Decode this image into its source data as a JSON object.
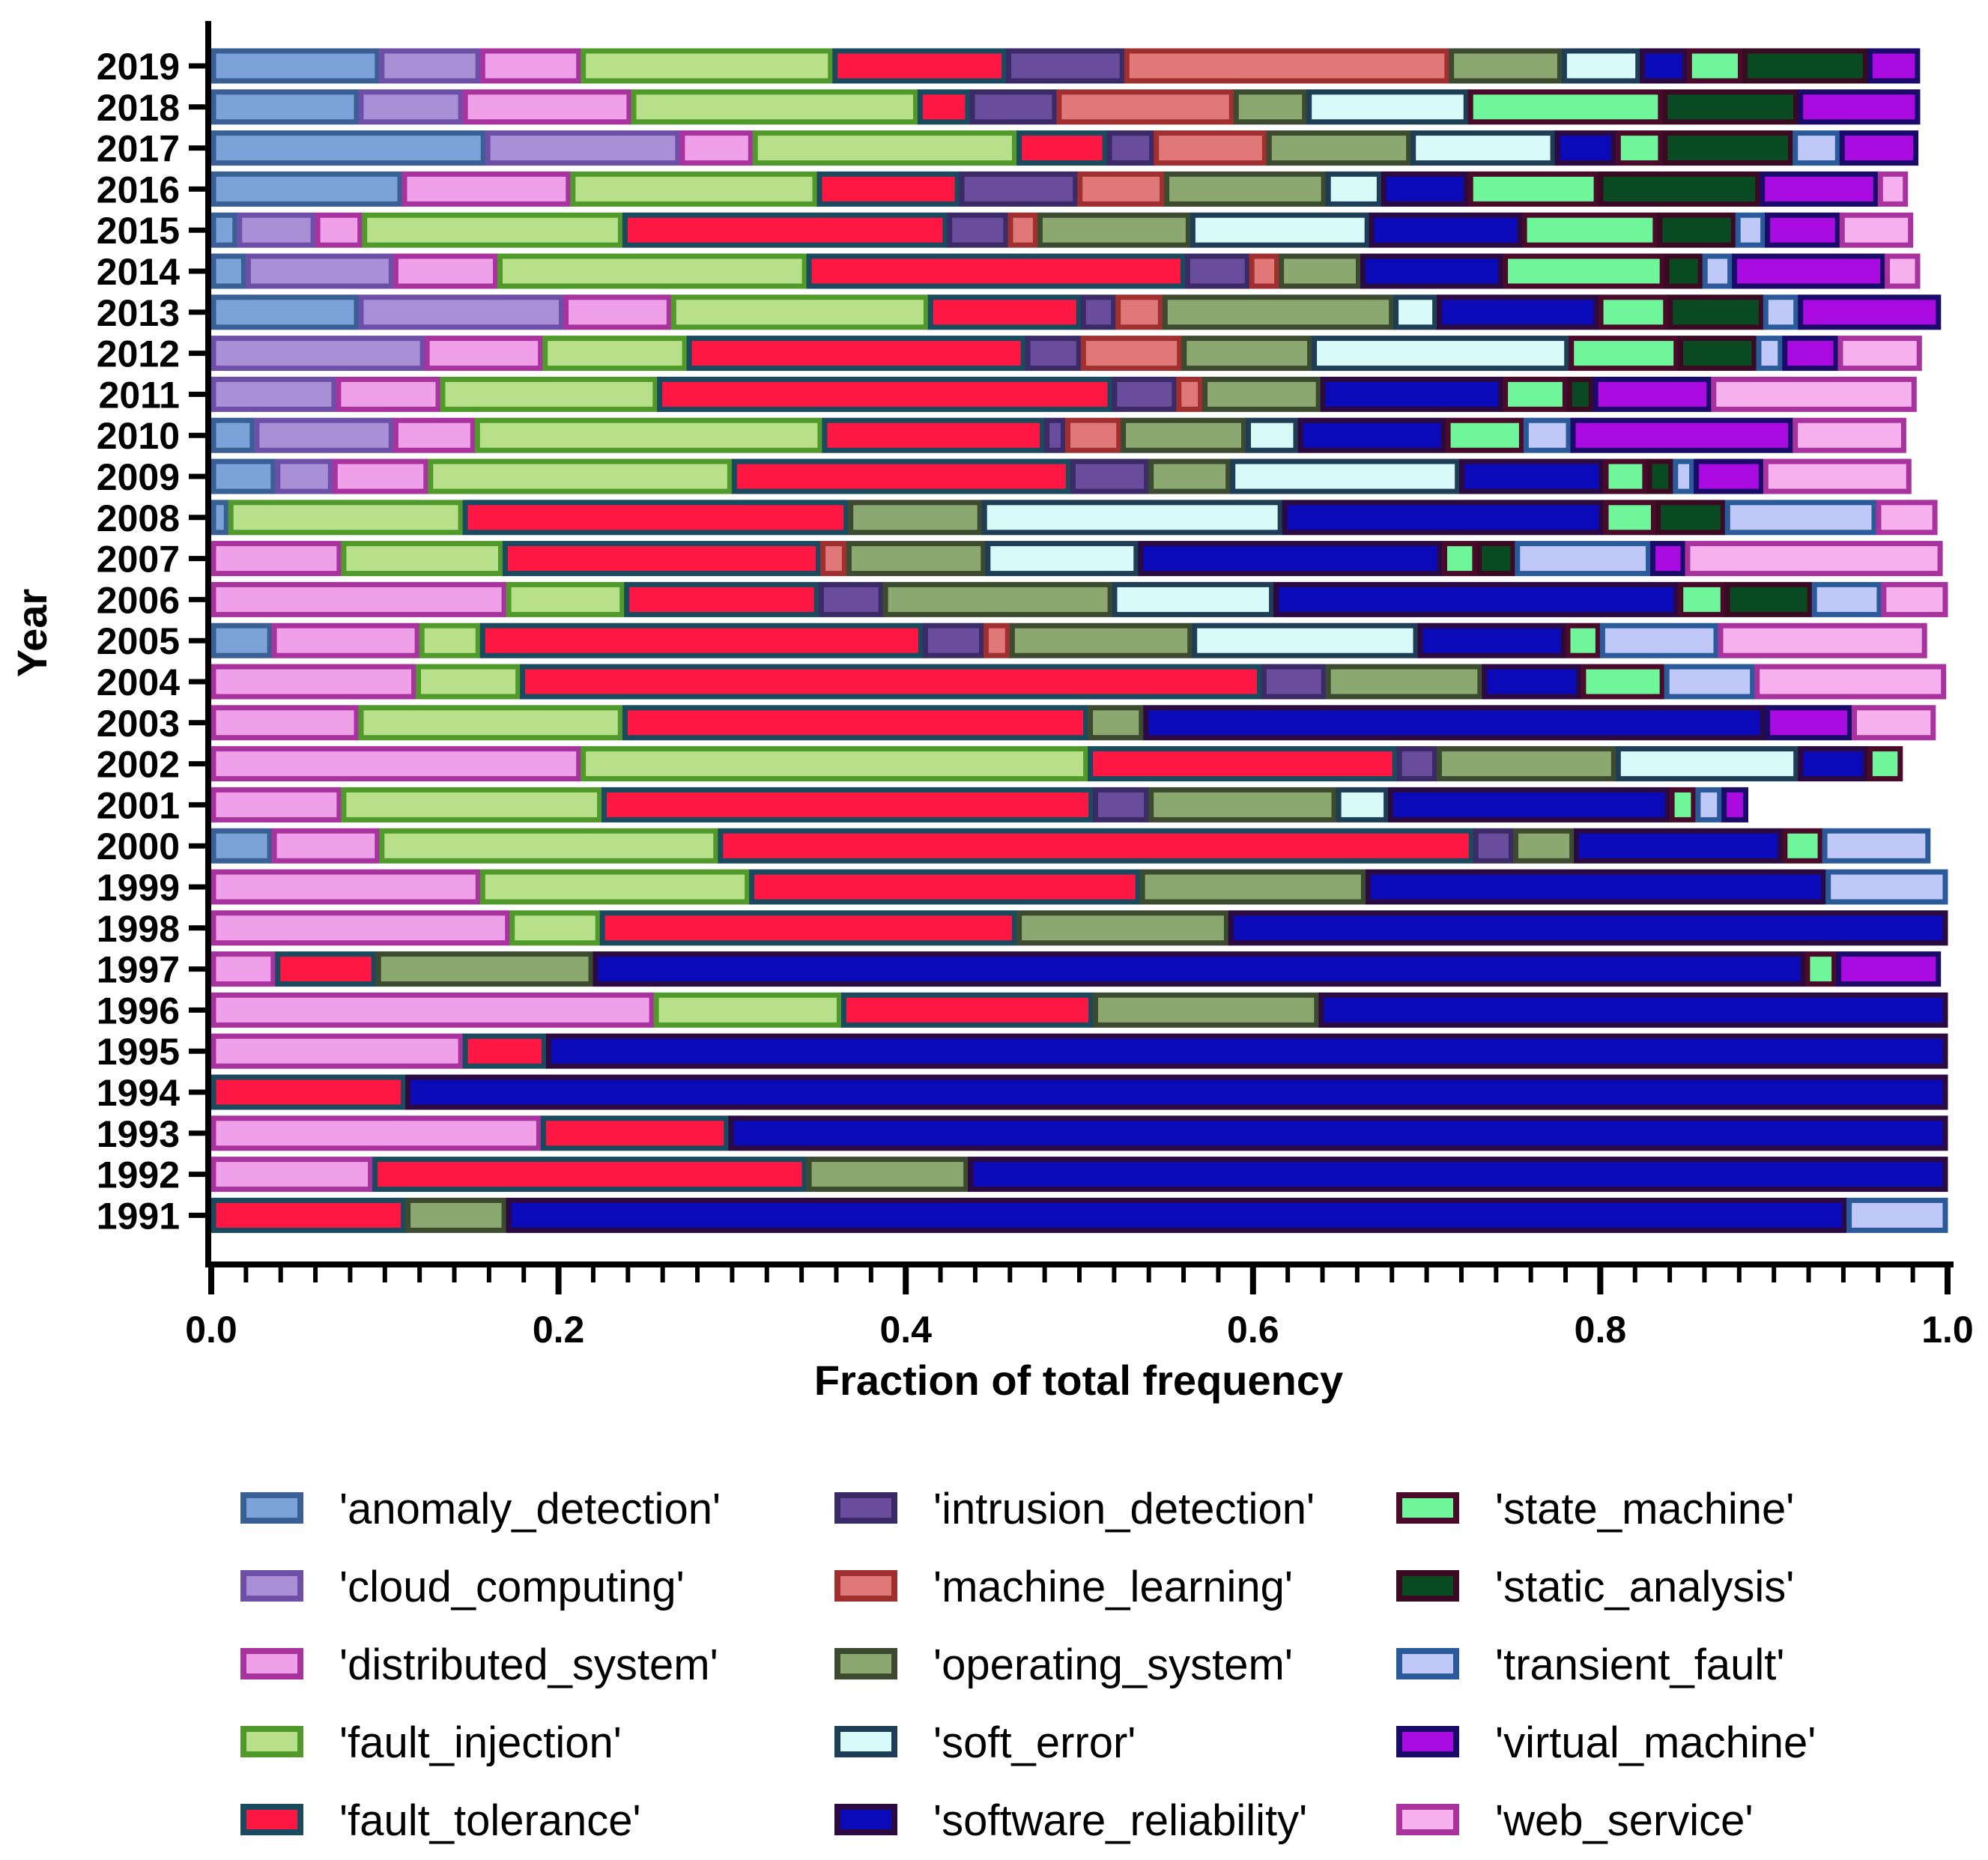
{
  "chart_data": {
    "type": "bar",
    "orientation": "horizontal",
    "stacked": true,
    "normalized": true,
    "title": "",
    "xlabel": "Fraction of total frequency",
    "ylabel": "Year",
    "xlim": [
      0,
      1
    ],
    "xticks": [
      "0.0",
      "0.2",
      "0.4",
      "0.6",
      "0.8",
      "1.0"
    ],
    "legend_position": "bottom",
    "categories": [
      "2019",
      "2018",
      "2017",
      "2016",
      "2015",
      "2014",
      "2013",
      "2012",
      "2011",
      "2010",
      "2009",
      "2008",
      "2007",
      "2006",
      "2005",
      "2004",
      "2003",
      "2002",
      "2001",
      "2000",
      "1999",
      "1998",
      "1997",
      "1996",
      "1995",
      "1994",
      "1993",
      "1992",
      "1991"
    ],
    "series": [
      {
        "name": "'anomaly_detection'",
        "fill": "#7BA3D9",
        "edge": "#3A5F95",
        "values": [
          0.097,
          0.085,
          0.158,
          0.11,
          0.015,
          0.02,
          0.085,
          0,
          0,
          0.025,
          0.037,
          0.01,
          0,
          0,
          0.035,
          0,
          0,
          0,
          0,
          0.035,
          0,
          0,
          0,
          0,
          0,
          0,
          0,
          0,
          0
        ]
      },
      {
        "name": "'cloud_computing'",
        "fill": "#A88FD6",
        "edge": "#6E4FA8",
        "values": [
          0.058,
          0.06,
          0.112,
          0,
          0.045,
          0.085,
          0.118,
          0.123,
          0.072,
          0.08,
          0.033,
          0,
          0,
          0,
          0,
          0,
          0,
          0,
          0,
          0,
          0,
          0,
          0,
          0,
          0,
          0,
          0,
          0,
          0
        ]
      },
      {
        "name": "'distributed_system'",
        "fill": "#EFA0E8",
        "edge": "#A8329E",
        "values": [
          0.058,
          0.097,
          0.042,
          0.097,
          0.027,
          0.06,
          0.062,
          0.068,
          0.06,
          0.047,
          0.055,
          0,
          0.075,
          0.17,
          0.085,
          0.118,
          0.085,
          0.213,
          0.075,
          0.062,
          0.155,
          0.172,
          0.037,
          0.255,
          0.145,
          0,
          0.19,
          0.093,
          0
        ]
      },
      {
        "name": "'fault_injection'",
        "fill": "#B8E08A",
        "edge": "#4F9A2A",
        "values": [
          0.145,
          0.165,
          0.152,
          0.142,
          0.15,
          0.178,
          0.148,
          0.083,
          0.125,
          0.2,
          0.175,
          0.135,
          0.093,
          0.068,
          0.035,
          0.06,
          0.152,
          0.292,
          0.15,
          0.195,
          0.155,
          0.052,
          0,
          0.108,
          0,
          0,
          0,
          0,
          0
        ]
      },
      {
        "name": "'fault_tolerance'",
        "fill": "#FF1744",
        "edge": "#1A4A5E",
        "values": [
          0.1,
          0.03,
          0.052,
          0.082,
          0.187,
          0.218,
          0.088,
          0.195,
          0.262,
          0.128,
          0.195,
          0.222,
          0.183,
          0.112,
          0.255,
          0.427,
          0.268,
          0.178,
          0.283,
          0.435,
          0.225,
          0.24,
          0.058,
          0.145,
          0.048,
          0.112,
          0.108,
          0.25,
          0.112
        ]
      },
      {
        "name": "'intrusion_detection'",
        "fill": "#6A4C9C",
        "edge": "#3A2A66",
        "values": [
          0.068,
          0.05,
          0.027,
          0.068,
          0.035,
          0.037,
          0.02,
          0.032,
          0.037,
          0.012,
          0.045,
          0,
          0,
          0.037,
          0.035,
          0.037,
          0,
          0.023,
          0.032,
          0.023,
          0,
          0,
          0,
          0,
          0,
          0,
          0,
          0,
          0
        ]
      },
      {
        "name": "'machine_learning'",
        "fill": "#E07878",
        "edge": "#A03030",
        "values": [
          0.187,
          0.102,
          0.065,
          0.05,
          0.017,
          0.017,
          0.027,
          0.058,
          0.015,
          0.032,
          0,
          0,
          0.015,
          0,
          0.015,
          0,
          0,
          0,
          0,
          0,
          0,
          0,
          0,
          0,
          0,
          0,
          0,
          0,
          0
        ]
      },
      {
        "name": "'operating_system'",
        "fill": "#8BA870",
        "edge": "#3C4A30",
        "values": [
          0.065,
          0.042,
          0.083,
          0.093,
          0.088,
          0.047,
          0.133,
          0.075,
          0.068,
          0.072,
          0.047,
          0.077,
          0.08,
          0.132,
          0.105,
          0.09,
          0.032,
          0.103,
          0.108,
          0.035,
          0.13,
          0.122,
          0.125,
          0.13,
          0,
          0,
          0,
          0.093,
          0.058
        ]
      },
      {
        "name": "'soft_error'",
        "fill": "#D8FAF8",
        "edge": "#1E3E55",
        "values": [
          0.045,
          0.093,
          0.083,
          0.032,
          0.103,
          0,
          0.025,
          0.148,
          0,
          0.03,
          0.132,
          0.173,
          0.088,
          0.093,
          0.13,
          0,
          0,
          0.105,
          0.03,
          0,
          0,
          0,
          0,
          0,
          0,
          0,
          0,
          0,
          0
        ]
      },
      {
        "name": "'software_reliability'",
        "fill": "#0A0AB8",
        "edge": "#2A0A40",
        "values": [
          0.027,
          0,
          0.035,
          0.05,
          0.088,
          0.082,
          0.093,
          0,
          0.105,
          0.085,
          0.083,
          0.185,
          0.175,
          0.233,
          0.085,
          0.057,
          0.358,
          0.04,
          0.162,
          0.12,
          0.265,
          0.417,
          0.698,
          0.365,
          0.807,
          0.888,
          0.702,
          0.564,
          0.772
        ]
      },
      {
        "name": "'state_machine'",
        "fill": "#6FF59A",
        "edge": "#4A0A2A",
        "values": [
          0.032,
          0.112,
          0.027,
          0.075,
          0.078,
          0.093,
          0.04,
          0.063,
          0.037,
          0.045,
          0.025,
          0.03,
          0.02,
          0.027,
          0.02,
          0.048,
          0,
          0.02,
          0.015,
          0.023,
          0,
          0,
          0.018,
          0,
          0,
          0,
          0,
          0,
          0
        ]
      },
      {
        "name": "'static_analysis'",
        "fill": "#0A4A22",
        "edge": "#3A0A22",
        "values": [
          0.072,
          0.078,
          0.075,
          0.093,
          0.045,
          0.022,
          0.055,
          0.045,
          0.015,
          0,
          0.015,
          0.04,
          0.022,
          0.05,
          0,
          0,
          0,
          0,
          0,
          0,
          0,
          0,
          0,
          0,
          0,
          0,
          0,
          0,
          0
        ]
      },
      {
        "name": "'transient_fault'",
        "fill": "#C0C8F8",
        "edge": "#2A5A9A",
        "values": [
          0,
          0,
          0.027,
          0,
          0.017,
          0.017,
          0.02,
          0.015,
          0,
          0.027,
          0.012,
          0.087,
          0.078,
          0.04,
          0.068,
          0.052,
          0,
          0,
          0.015,
          0.062,
          0.07,
          0,
          0,
          0,
          0,
          0,
          0,
          0,
          0.058
        ]
      },
      {
        "name": "'virtual_machine'",
        "fill": "#A80AE0",
        "edge": "#1A0A6A",
        "values": [
          0.03,
          0.07,
          0.045,
          0.068,
          0.043,
          0.088,
          0.082,
          0.032,
          0.068,
          0.128,
          0.04,
          0,
          0.02,
          0,
          0,
          0,
          0.05,
          0,
          0.015,
          0,
          0,
          0,
          0.06,
          0,
          0,
          0,
          0,
          0,
          0
        ]
      },
      {
        "name": "'web_service'",
        "fill": "#F7B0EE",
        "edge": "#A8329E",
        "values": [
          0,
          0,
          0,
          0.017,
          0.042,
          0.02,
          0,
          0.048,
          0.118,
          0.065,
          0.085,
          0.035,
          0.148,
          0.038,
          0.12,
          0.11,
          0.048,
          0,
          0,
          0,
          0,
          0,
          0,
          0,
          0,
          0,
          0,
          0,
          0
        ]
      }
    ]
  }
}
